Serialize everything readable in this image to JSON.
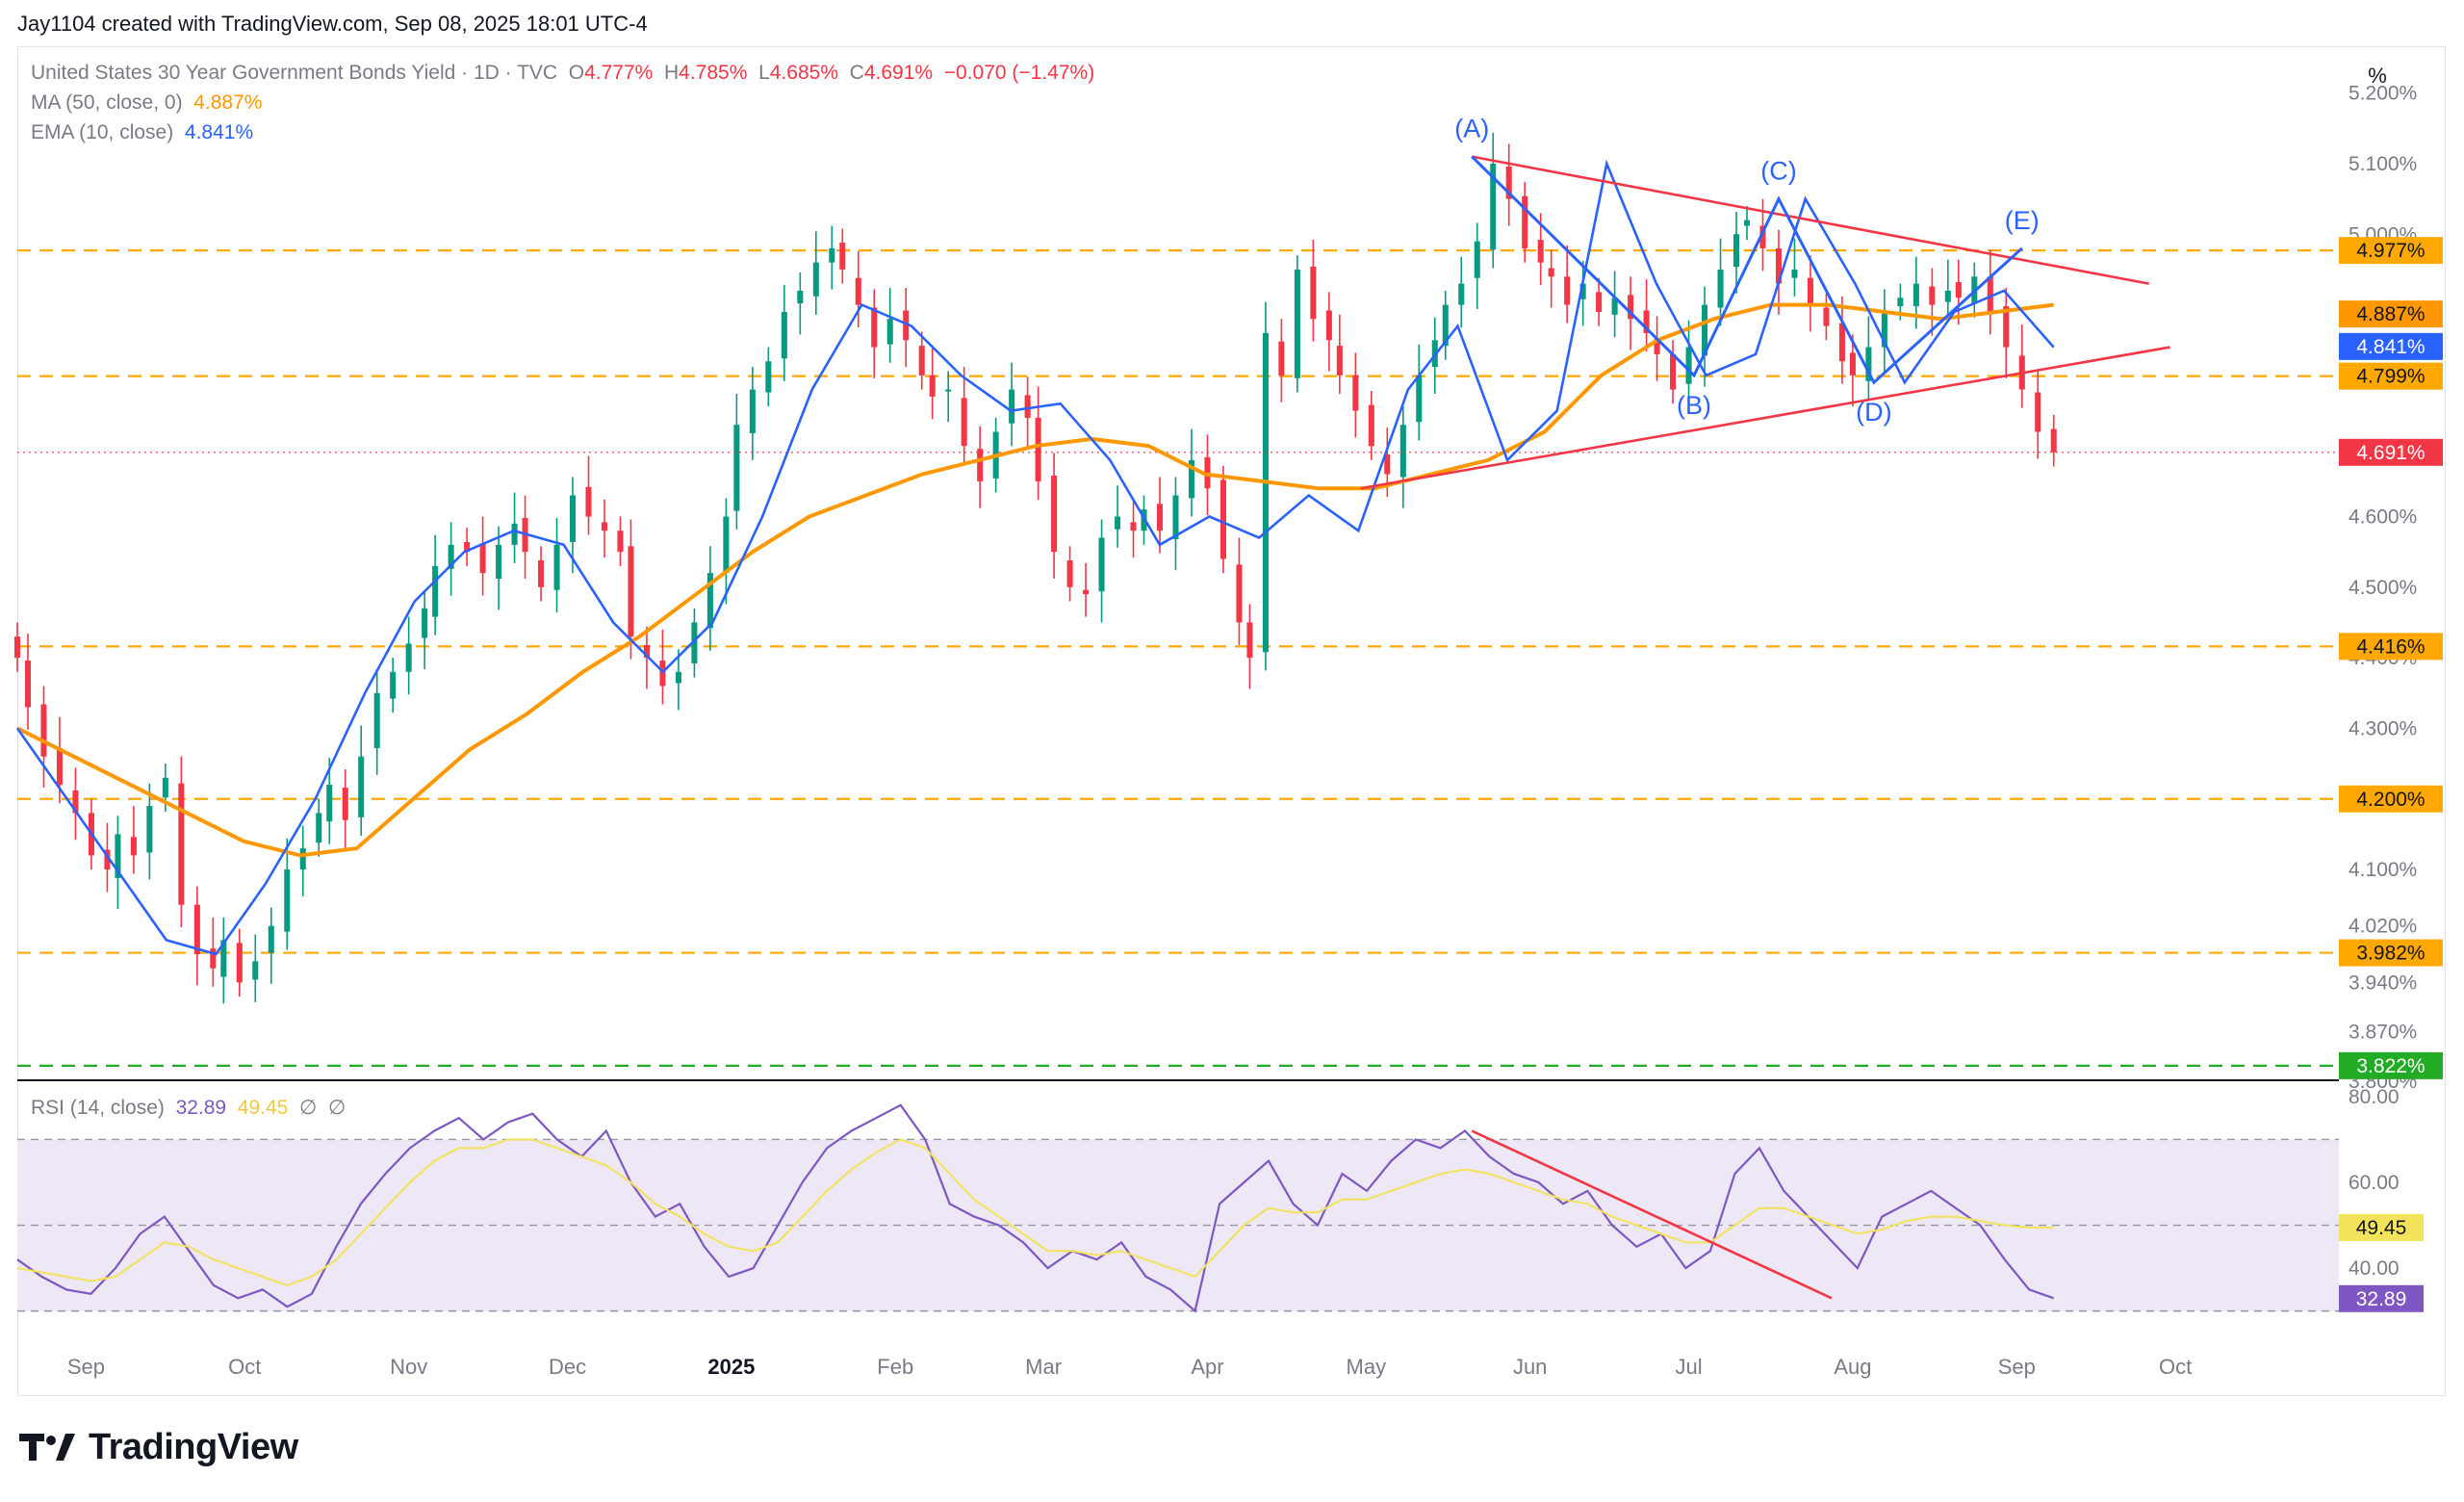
{
  "header": {
    "text": "Jay1104 created with TradingView.com, Sep 08, 2025 18:01 UTC-4"
  },
  "legend": {
    "symbol": "United States 30 Year Government Bonds Yield · 1D · TVC",
    "o_label": "O",
    "o_value": "4.777%",
    "h_label": "H",
    "h_value": "4.785%",
    "l_label": "L",
    "l_value": "4.685%",
    "c_label": "C",
    "c_value": "4.691%",
    "change": "−0.070 (−1.47%)",
    "ma_label": "MA (50, close, 0)",
    "ma_value": "4.887%",
    "ema_label": "EMA (10, close)",
    "ema_value": "4.841%",
    "rsi_label": "RSI (14, close)",
    "rsi_value": "32.89",
    "rsi_ma_value": "49.45",
    "rsi_extra1": "∅",
    "rsi_extra2": "∅"
  },
  "unit_label": "%",
  "colors": {
    "up": "#089981",
    "down": "#f23645",
    "ma": "#ff9800",
    "ema": "#2962ff",
    "level": "#ffa800",
    "support": "#22ab24",
    "triangle": "#f23645",
    "wave": "#2962ff",
    "rsi": "#7e57c2",
    "rsi_ma": "#f2e35a",
    "rsi_band": "#ede7f6"
  },
  "chart_data": [
    {
      "type": "candlestick",
      "y_axis_ticks": [
        "5.200%",
        "5.100%",
        "5.000%",
        "4.600%",
        "4.500%",
        "4.400%",
        "4.300%",
        "4.100%",
        "4.020%",
        "3.940%",
        "3.870%",
        "3.800%"
      ],
      "ylim": [
        3.8,
        5.25
      ],
      "x_axis_ticks": [
        "Sep",
        "Oct",
        "Nov",
        "Dec",
        "2025",
        "Feb",
        "Mar",
        "Apr",
        "May",
        "Jun",
        "Jul",
        "Aug",
        "Sep",
        "Oct"
      ],
      "x_range": [
        "2024-08-19",
        "2025-10-31"
      ],
      "horizontal_levels": [
        {
          "value": 4.977,
          "label": "4.977%",
          "style": "dashed"
        },
        {
          "value": 4.799,
          "label": "4.799%",
          "style": "dashed"
        },
        {
          "value": 4.416,
          "label": "4.416%",
          "style": "dashed"
        },
        {
          "value": 4.2,
          "label": "4.200%",
          "style": "dashed"
        },
        {
          "value": 3.982,
          "label": "3.982%",
          "style": "dashed"
        },
        {
          "value": 3.822,
          "label": "3.822%",
          "style": "dashed-support"
        }
      ],
      "price_tags": [
        {
          "value": 4.887,
          "label": "4.887%",
          "series": "MA"
        },
        {
          "value": 4.841,
          "label": "4.841%",
          "series": "EMA"
        },
        {
          "value": 4.691,
          "label": "4.691%",
          "series": "last"
        }
      ],
      "last_close": 4.691,
      "closes": [
        4.4,
        4.33,
        4.26,
        4.22,
        4.18,
        4.12,
        4.1,
        4.15,
        4.12,
        4.19,
        4.23,
        4.05,
        3.98,
        3.96,
        4.0,
        3.94,
        3.97,
        4.02,
        4.1,
        4.13,
        4.18,
        4.22,
        4.17,
        4.26,
        4.35,
        4.38,
        4.42,
        4.47,
        4.53,
        4.56,
        4.55,
        4.52,
        4.56,
        4.59,
        4.55,
        4.5,
        4.56,
        4.63,
        4.6,
        4.58,
        4.55,
        4.43,
        4.4,
        4.36,
        4.38,
        4.45,
        4.52,
        4.6,
        4.73,
        4.78,
        4.82,
        4.89,
        4.92,
        4.96,
        4.98,
        4.95,
        4.9,
        4.84,
        4.88,
        4.85,
        4.8,
        4.77,
        4.78,
        4.7,
        4.65,
        4.72,
        4.78,
        4.74,
        4.65,
        4.55,
        4.5,
        4.49,
        4.57,
        4.6,
        4.58,
        4.61,
        4.58,
        4.63,
        4.68,
        4.64,
        4.54,
        4.45,
        4.4,
        4.86,
        4.8,
        4.95,
        4.88,
        4.85,
        4.8,
        4.75,
        4.7,
        4.66,
        4.73,
        4.8,
        4.85,
        4.9,
        4.93,
        4.99,
        5.1,
        5.05,
        4.98,
        4.96,
        4.94,
        4.9,
        4.93,
        4.89,
        4.91,
        4.88,
        4.86,
        4.83,
        4.78,
        4.84,
        4.9,
        4.95,
        5.0,
        5.02,
        4.98,
        4.93,
        4.95,
        4.9,
        4.87,
        4.82,
        4.8,
        4.84,
        4.89,
        4.91,
        4.93,
        4.9,
        4.92,
        4.91,
        4.94,
        4.89,
        4.84,
        4.78,
        4.72,
        4.691
      ],
      "candle_start": "2024-08-19",
      "wave_labels": [
        {
          "label": "(A)",
          "date": "2025-05-21",
          "value": 5.11
        },
        {
          "label": "(B)",
          "date": "2025-07-02",
          "value": 4.8
        },
        {
          "label": "(C)",
          "date": "2025-07-18",
          "value": 5.05
        },
        {
          "label": "(D)",
          "date": "2025-08-05",
          "value": 4.79
        },
        {
          "label": "(E)",
          "date": "2025-09-02",
          "value": 4.98
        }
      ],
      "triangle_upper": [
        {
          "date": "2025-05-21",
          "value": 5.11
        },
        {
          "date": "2025-09-26",
          "value": 4.93
        }
      ],
      "triangle_lower": [
        {
          "date": "2025-04-30",
          "value": 4.64
        },
        {
          "date": "2025-09-30",
          "value": 4.84
        }
      ],
      "ma_series": [
        4.3,
        4.26,
        4.22,
        4.18,
        4.14,
        4.12,
        4.13,
        4.2,
        4.27,
        4.32,
        4.38,
        4.43,
        4.49,
        4.55,
        4.6,
        4.63,
        4.66,
        4.68,
        4.7,
        4.71,
        4.7,
        4.66,
        4.65,
        4.64,
        4.64,
        4.66,
        4.68,
        4.72,
        4.8,
        4.85,
        4.88,
        4.9,
        4.9,
        4.89,
        4.88,
        4.89,
        4.9
      ],
      "ema_series": [
        4.3,
        4.2,
        4.1,
        4.0,
        3.98,
        4.08,
        4.2,
        4.35,
        4.48,
        4.55,
        4.58,
        4.56,
        4.45,
        4.38,
        4.45,
        4.6,
        4.78,
        4.9,
        4.87,
        4.8,
        4.75,
        4.76,
        4.68,
        4.56,
        4.6,
        4.57,
        4.63,
        4.58,
        4.78,
        4.87,
        4.68,
        4.75,
        5.1,
        4.93,
        4.8,
        4.83,
        5.05,
        4.93,
        4.79,
        4.89,
        4.92,
        4.84
      ]
    },
    {
      "type": "line",
      "title": "RSI (14, close)",
      "y_axis_ticks": [
        "80.00",
        "60.00",
        "40.00"
      ],
      "ylim": [
        27,
        82
      ],
      "bands": [
        70,
        50,
        30
      ],
      "value_tags": [
        {
          "value": 49.45,
          "label": "49.45"
        },
        {
          "value": 32.89,
          "label": "32.89"
        }
      ],
      "series": [
        {
          "name": "RSI",
          "values": [
            42,
            38,
            35,
            34,
            40,
            48,
            52,
            44,
            36,
            33,
            35,
            31,
            34,
            45,
            55,
            62,
            68,
            72,
            75,
            70,
            74,
            76,
            70,
            66,
            72,
            60,
            52,
            55,
            45,
            38,
            40,
            50,
            60,
            68,
            72,
            75,
            78,
            70,
            55,
            52,
            50,
            46,
            40,
            44,
            42,
            46,
            38,
            35,
            30,
            55,
            60,
            65,
            55,
            50,
            62,
            58,
            65,
            70,
            68,
            72,
            66,
            62,
            60,
            55,
            58,
            50,
            45,
            48,
            40,
            44,
            62,
            68,
            58,
            52,
            46,
            40,
            52,
            55,
            58,
            54,
            50,
            42,
            35,
            33
          ]
        },
        {
          "name": "RSI MA",
          "values": [
            40,
            39,
            38,
            37,
            38,
            42,
            46,
            45,
            42,
            40,
            38,
            36,
            38,
            42,
            48,
            54,
            60,
            65,
            68,
            68,
            70,
            70,
            68,
            66,
            64,
            60,
            55,
            52,
            48,
            45,
            44,
            46,
            52,
            58,
            63,
            67,
            70,
            68,
            62,
            56,
            52,
            48,
            44,
            44,
            43,
            44,
            42,
            40,
            38,
            44,
            50,
            54,
            53,
            53,
            56,
            56,
            58,
            60,
            62,
            63,
            62,
            60,
            58,
            56,
            55,
            52,
            50,
            48,
            46,
            46,
            50,
            54,
            54,
            52,
            50,
            48,
            49,
            51,
            52,
            52,
            51,
            50,
            49.45,
            49.45
          ]
        }
      ],
      "trendline": [
        {
          "date": "2025-05-21",
          "value": 72
        },
        {
          "date": "2025-07-28",
          "value": 33
        }
      ]
    }
  ],
  "x_axis": [
    "Sep",
    "Oct",
    "Nov",
    "Dec",
    "2025",
    "Feb",
    "Mar",
    "Apr",
    "May",
    "Jun",
    "Jul",
    "Aug",
    "Sep",
    "Oct"
  ],
  "footer": {
    "brand": "TradingView"
  }
}
